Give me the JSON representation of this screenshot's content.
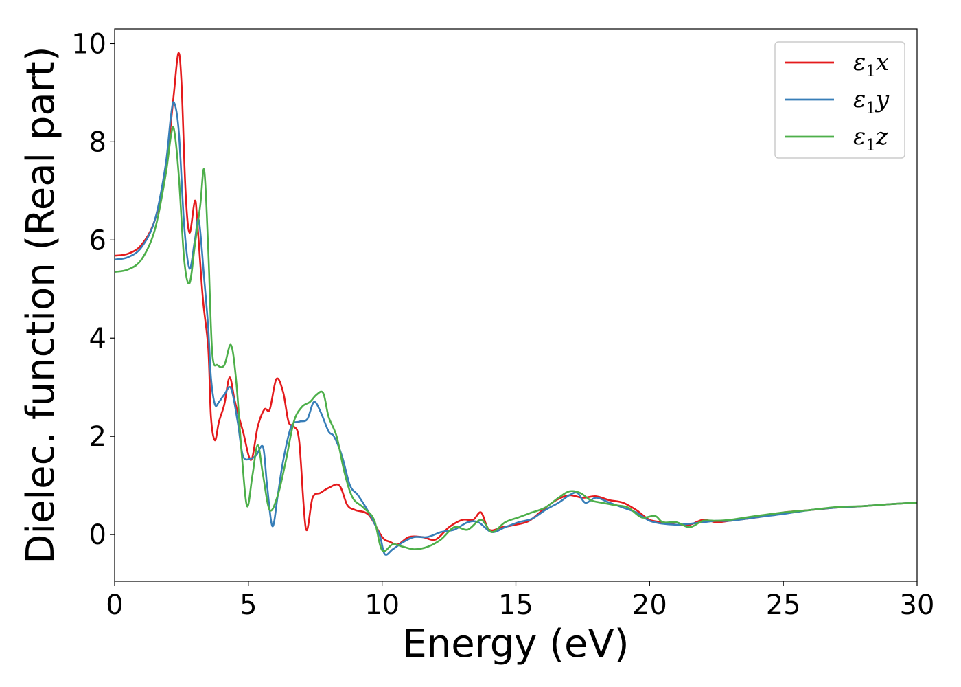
{
  "chart_data": {
    "type": "line",
    "xlabel": "Energy (eV)",
    "ylabel": "Dielec. function (Real part)",
    "xlim": [
      0,
      30
    ],
    "ylim": [
      -0.95,
      10.3
    ],
    "xticks": [
      0,
      5,
      10,
      15,
      20,
      25,
      30
    ],
    "yticks": [
      0,
      2,
      4,
      6,
      8,
      10
    ],
    "xtick_labels": [
      "0",
      "5",
      "10",
      "15",
      "20",
      "25",
      "30"
    ],
    "ytick_labels": [
      "0",
      "2",
      "4",
      "6",
      "8",
      "10"
    ],
    "grid": false,
    "legend_position": "top-right",
    "series": [
      {
        "name": "ε₁x",
        "legend_base": "ε",
        "legend_sub": "1",
        "legend_var": "x",
        "color": "#e41a1c",
        "points": [
          [
            0,
            5.68
          ],
          [
            0.5,
            5.72
          ],
          [
            1.0,
            5.9
          ],
          [
            1.5,
            6.4
          ],
          [
            1.9,
            7.4
          ],
          [
            2.2,
            8.9
          ],
          [
            2.38,
            9.8
          ],
          [
            2.5,
            9.2
          ],
          [
            2.65,
            7.0
          ],
          [
            2.8,
            6.15
          ],
          [
            3.0,
            6.8
          ],
          [
            3.1,
            6.3
          ],
          [
            3.3,
            4.8
          ],
          [
            3.5,
            3.8
          ],
          [
            3.6,
            2.4
          ],
          [
            3.75,
            1.92
          ],
          [
            3.9,
            2.3
          ],
          [
            4.1,
            2.65
          ],
          [
            4.3,
            3.2
          ],
          [
            4.5,
            2.7
          ],
          [
            4.8,
            2.1
          ],
          [
            5.1,
            1.52
          ],
          [
            5.35,
            2.2
          ],
          [
            5.6,
            2.55
          ],
          [
            5.8,
            2.55
          ],
          [
            6.05,
            3.17
          ],
          [
            6.3,
            2.9
          ],
          [
            6.5,
            2.3
          ],
          [
            6.7,
            2.2
          ],
          [
            6.9,
            1.9
          ],
          [
            7.15,
            0.12
          ],
          [
            7.4,
            0.75
          ],
          [
            7.7,
            0.85
          ],
          [
            8.0,
            0.95
          ],
          [
            8.4,
            1.0
          ],
          [
            8.7,
            0.6
          ],
          [
            9.0,
            0.5
          ],
          [
            9.5,
            0.4
          ],
          [
            10.0,
            -0.05
          ],
          [
            10.3,
            -0.15
          ],
          [
            10.6,
            -0.2
          ],
          [
            11.0,
            -0.05
          ],
          [
            11.5,
            -0.05
          ],
          [
            12.0,
            -0.1
          ],
          [
            12.5,
            0.15
          ],
          [
            13.0,
            0.3
          ],
          [
            13.4,
            0.3
          ],
          [
            13.7,
            0.45
          ],
          [
            14.0,
            0.1
          ],
          [
            14.5,
            0.15
          ],
          [
            15.0,
            0.2
          ],
          [
            15.5,
            0.28
          ],
          [
            16.0,
            0.5
          ],
          [
            16.5,
            0.7
          ],
          [
            17.0,
            0.8
          ],
          [
            17.5,
            0.75
          ],
          [
            18.0,
            0.78
          ],
          [
            18.5,
            0.7
          ],
          [
            19.0,
            0.65
          ],
          [
            19.5,
            0.5
          ],
          [
            20.0,
            0.3
          ],
          [
            20.5,
            0.25
          ],
          [
            21.0,
            0.2
          ],
          [
            21.5,
            0.2
          ],
          [
            22.0,
            0.3
          ],
          [
            22.5,
            0.25
          ],
          [
            23.0,
            0.28
          ],
          [
            24.0,
            0.35
          ],
          [
            25.0,
            0.45
          ],
          [
            26.0,
            0.5
          ],
          [
            27.0,
            0.55
          ],
          [
            28.0,
            0.58
          ],
          [
            29.0,
            0.62
          ],
          [
            30.0,
            0.65
          ]
        ]
      },
      {
        "name": "ε₁y",
        "legend_base": "ε",
        "legend_sub": "1",
        "legend_var": "y",
        "color": "#377eb8",
        "points": [
          [
            0,
            5.6
          ],
          [
            0.5,
            5.65
          ],
          [
            1.0,
            5.85
          ],
          [
            1.5,
            6.4
          ],
          [
            1.9,
            7.5
          ],
          [
            2.1,
            8.5
          ],
          [
            2.22,
            8.8
          ],
          [
            2.4,
            8.2
          ],
          [
            2.6,
            6.3
          ],
          [
            2.8,
            5.42
          ],
          [
            3.0,
            6.0
          ],
          [
            3.15,
            6.4
          ],
          [
            3.35,
            5.2
          ],
          [
            3.5,
            4.2
          ],
          [
            3.6,
            3.2
          ],
          [
            3.75,
            2.65
          ],
          [
            3.9,
            2.7
          ],
          [
            4.1,
            2.85
          ],
          [
            4.35,
            2.98
          ],
          [
            4.6,
            2.3
          ],
          [
            4.8,
            1.6
          ],
          [
            5.1,
            1.55
          ],
          [
            5.3,
            1.62
          ],
          [
            5.55,
            1.78
          ],
          [
            5.7,
            1.0
          ],
          [
            5.9,
            0.17
          ],
          [
            6.1,
            0.8
          ],
          [
            6.3,
            1.5
          ],
          [
            6.6,
            2.2
          ],
          [
            6.9,
            2.3
          ],
          [
            7.2,
            2.35
          ],
          [
            7.45,
            2.7
          ],
          [
            7.7,
            2.5
          ],
          [
            8.0,
            2.1
          ],
          [
            8.2,
            2.0
          ],
          [
            8.5,
            1.6
          ],
          [
            8.8,
            1.0
          ],
          [
            9.1,
            0.8
          ],
          [
            9.5,
            0.45
          ],
          [
            9.9,
            0.0
          ],
          [
            10.1,
            -0.4
          ],
          [
            10.4,
            -0.3
          ],
          [
            10.8,
            -0.15
          ],
          [
            11.2,
            -0.05
          ],
          [
            11.7,
            -0.05
          ],
          [
            12.2,
            0.05
          ],
          [
            12.7,
            0.1
          ],
          [
            13.2,
            0.25
          ],
          [
            13.6,
            0.25
          ],
          [
            14.1,
            0.05
          ],
          [
            14.6,
            0.15
          ],
          [
            15.1,
            0.25
          ],
          [
            15.6,
            0.32
          ],
          [
            16.1,
            0.5
          ],
          [
            16.6,
            0.65
          ],
          [
            17.0,
            0.8
          ],
          [
            17.3,
            0.85
          ],
          [
            17.6,
            0.65
          ],
          [
            18.0,
            0.75
          ],
          [
            18.5,
            0.65
          ],
          [
            19.0,
            0.55
          ],
          [
            19.5,
            0.45
          ],
          [
            20.0,
            0.28
          ],
          [
            20.5,
            0.22
          ],
          [
            21.0,
            0.2
          ],
          [
            21.5,
            0.22
          ],
          [
            22.0,
            0.25
          ],
          [
            22.5,
            0.28
          ],
          [
            23.0,
            0.28
          ],
          [
            24.0,
            0.35
          ],
          [
            25.0,
            0.42
          ],
          [
            26.0,
            0.5
          ],
          [
            27.0,
            0.55
          ],
          [
            28.0,
            0.58
          ],
          [
            29.0,
            0.62
          ],
          [
            30.0,
            0.65
          ]
        ]
      },
      {
        "name": "ε₁z",
        "legend_base": "ε",
        "legend_sub": "1",
        "legend_var": "z",
        "color": "#4daf4a",
        "points": [
          [
            0,
            5.35
          ],
          [
            0.5,
            5.4
          ],
          [
            1.0,
            5.6
          ],
          [
            1.5,
            6.2
          ],
          [
            1.9,
            7.3
          ],
          [
            2.1,
            8.1
          ],
          [
            2.22,
            8.25
          ],
          [
            2.4,
            7.3
          ],
          [
            2.6,
            5.6
          ],
          [
            2.8,
            5.12
          ],
          [
            3.0,
            5.9
          ],
          [
            3.2,
            6.7
          ],
          [
            3.35,
            7.42
          ],
          [
            3.5,
            5.8
          ],
          [
            3.65,
            3.7
          ],
          [
            3.85,
            3.45
          ],
          [
            4.1,
            3.45
          ],
          [
            4.35,
            3.86
          ],
          [
            4.55,
            3.1
          ],
          [
            4.75,
            1.65
          ],
          [
            4.95,
            0.58
          ],
          [
            5.15,
            1.2
          ],
          [
            5.35,
            1.82
          ],
          [
            5.55,
            1.2
          ],
          [
            5.8,
            0.5
          ],
          [
            6.1,
            0.8
          ],
          [
            6.4,
            1.5
          ],
          [
            6.7,
            2.3
          ],
          [
            7.0,
            2.6
          ],
          [
            7.3,
            2.7
          ],
          [
            7.55,
            2.85
          ],
          [
            7.8,
            2.88
          ],
          [
            8.0,
            2.4
          ],
          [
            8.3,
            2.0
          ],
          [
            8.6,
            1.25
          ],
          [
            8.9,
            0.75
          ],
          [
            9.3,
            0.55
          ],
          [
            9.7,
            0.3
          ],
          [
            10.0,
            -0.32
          ],
          [
            10.4,
            -0.2
          ],
          [
            10.8,
            -0.25
          ],
          [
            11.2,
            -0.3
          ],
          [
            11.7,
            -0.25
          ],
          [
            12.2,
            -0.1
          ],
          [
            12.7,
            0.15
          ],
          [
            13.2,
            0.1
          ],
          [
            13.7,
            0.3
          ],
          [
            14.1,
            0.05
          ],
          [
            14.6,
            0.25
          ],
          [
            15.1,
            0.35
          ],
          [
            15.6,
            0.45
          ],
          [
            16.1,
            0.55
          ],
          [
            16.6,
            0.75
          ],
          [
            17.0,
            0.88
          ],
          [
            17.4,
            0.85
          ],
          [
            17.8,
            0.7
          ],
          [
            18.2,
            0.65
          ],
          [
            18.7,
            0.6
          ],
          [
            19.2,
            0.55
          ],
          [
            19.7,
            0.35
          ],
          [
            20.2,
            0.38
          ],
          [
            20.5,
            0.25
          ],
          [
            21.0,
            0.25
          ],
          [
            21.5,
            0.15
          ],
          [
            22.0,
            0.28
          ],
          [
            22.5,
            0.28
          ],
          [
            23.0,
            0.3
          ],
          [
            24.0,
            0.38
          ],
          [
            25.0,
            0.45
          ],
          [
            26.0,
            0.5
          ],
          [
            27.0,
            0.56
          ],
          [
            28.0,
            0.58
          ],
          [
            29.0,
            0.62
          ],
          [
            30.0,
            0.65
          ]
        ]
      }
    ]
  }
}
